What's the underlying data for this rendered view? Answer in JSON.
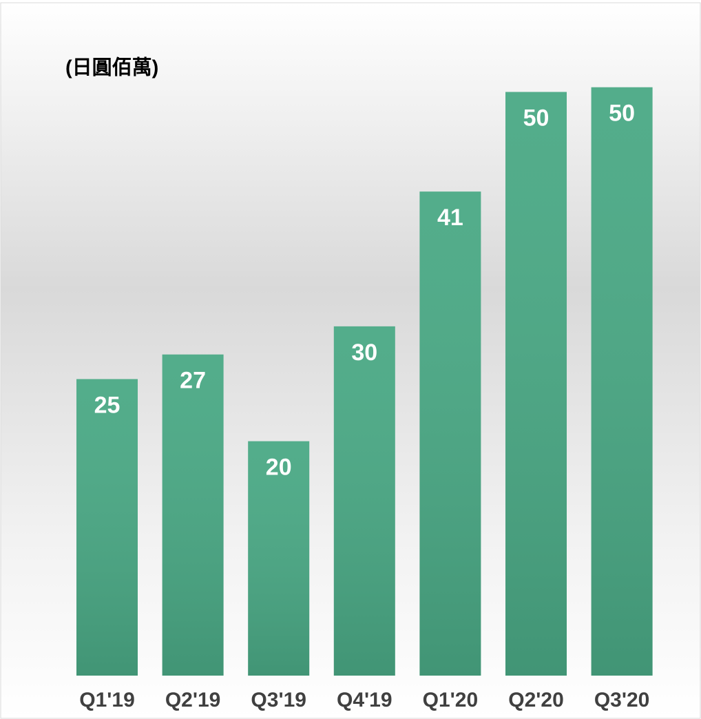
{
  "chart_data": {
    "type": "bar",
    "title": "(日圓佰萬)",
    "categories": [
      "Q1'19",
      "Q2'19",
      "Q3'19",
      "Q4'19",
      "Q1'20",
      "Q2'20",
      "Q3'20"
    ],
    "values": [
      25.3,
      27.4,
      20.0,
      29.8,
      41.3,
      49.8,
      50.2
    ],
    "value_labels": [
      "25",
      "27",
      "20",
      "30",
      "41",
      "50",
      "50"
    ],
    "color": "#4aa985",
    "ylim": [
      0,
      55
    ]
  }
}
